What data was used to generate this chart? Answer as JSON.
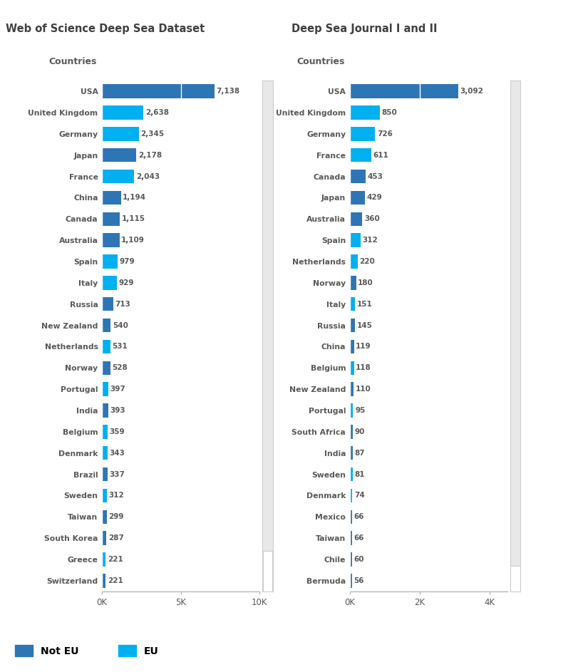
{
  "left_title": "Web of Science Deep Sea Dataset",
  "right_title": "Deep Sea Journal I and II",
  "subtitle": "Countries",
  "left_countries": [
    "USA",
    "United Kingdom",
    "Germany",
    "Japan",
    "France",
    "China",
    "Canada",
    "Australia",
    "Spain",
    "Italy",
    "Russia",
    "New Zealand",
    "Netherlands",
    "Norway",
    "Portugal",
    "India",
    "Belgium",
    "Denmark",
    "Brazil",
    "Sweden",
    "Taiwan",
    "South Korea",
    "Greece",
    "Switzerland"
  ],
  "left_values": [
    7138,
    2638,
    2345,
    2178,
    2043,
    1194,
    1115,
    1109,
    979,
    929,
    713,
    540,
    531,
    528,
    397,
    393,
    359,
    343,
    337,
    312,
    299,
    287,
    221,
    221
  ],
  "left_eu": [
    false,
    true,
    true,
    false,
    true,
    false,
    false,
    false,
    true,
    true,
    false,
    false,
    true,
    false,
    true,
    false,
    true,
    true,
    false,
    true,
    false,
    false,
    true,
    false
  ],
  "right_countries": [
    "USA",
    "United Kingdom",
    "Germany",
    "France",
    "Canada",
    "Japan",
    "Australia",
    "Spain",
    "Netherlands",
    "Norway",
    "Italy",
    "Russia",
    "China",
    "Belgium",
    "New Zealand",
    "Portugal",
    "South Africa",
    "India",
    "Sweden",
    "Denmark",
    "Mexico",
    "Taiwan",
    "Chile",
    "Bermuda"
  ],
  "right_values": [
    3092,
    850,
    726,
    611,
    453,
    429,
    360,
    312,
    220,
    180,
    151,
    145,
    119,
    118,
    110,
    95,
    90,
    87,
    81,
    74,
    66,
    66,
    60,
    56
  ],
  "right_eu": [
    false,
    true,
    true,
    true,
    false,
    false,
    false,
    true,
    true,
    false,
    true,
    false,
    false,
    true,
    false,
    true,
    false,
    false,
    true,
    true,
    false,
    false,
    false,
    false
  ],
  "color_not_eu": "#2E75B6",
  "color_eu": "#00B0F0",
  "background_color": "#ffffff",
  "legend_not_eu": "Not EU",
  "legend_eu": "EU",
  "left_xlim": [
    0,
    10000
  ],
  "right_xlim": [
    0,
    4500
  ],
  "left_xticks": [
    0,
    5000,
    10000
  ],
  "left_xticklabels": [
    "0K",
    "5K",
    "10K"
  ],
  "right_xticks": [
    0,
    2000,
    4000
  ],
  "right_xticklabels": [
    "0K",
    "2K",
    "4K"
  ],
  "scrollbar_color": "#e8e8e8",
  "scrollbar_border": "#cccccc",
  "text_color": "#595959",
  "title_color": "#404040"
}
